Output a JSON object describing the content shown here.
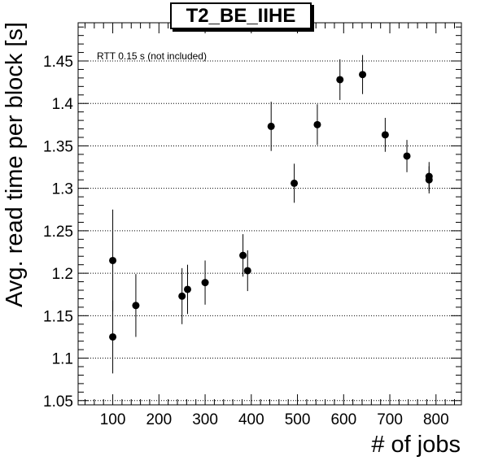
{
  "chart_data": {
    "type": "scatter",
    "title": "T2_BE_IIHE",
    "xlabel": "# of jobs",
    "ylabel": "Avg. read time per block [s]",
    "annotation": "RTT 0.15 s (not included)",
    "xlim": [
      25,
      855
    ],
    "ylim": [
      1.045,
      1.495
    ],
    "x_ticks": [
      100,
      200,
      300,
      400,
      500,
      600,
      700,
      800
    ],
    "y_ticks": [
      1.05,
      1.1,
      1.15,
      1.2,
      1.25,
      1.3,
      1.35,
      1.4,
      1.45
    ],
    "y_tick_labels": [
      "1.05",
      "1.1",
      "1.15",
      "1.2",
      "1.25",
      "1.3",
      "1.35",
      "1.4",
      "1.45"
    ],
    "grid": "horizontal dotted",
    "marker_color": "#000000",
    "points": [
      {
        "x": 100,
        "y": 1.215,
        "err": 0.06
      },
      {
        "x": 100,
        "y": 1.125,
        "err": 0.043
      },
      {
        "x": 150,
        "y": 1.162,
        "err": 0.037
      },
      {
        "x": 250,
        "y": 1.173,
        "err": 0.033
      },
      {
        "x": 262,
        "y": 1.181,
        "err": 0.029
      },
      {
        "x": 300,
        "y": 1.189,
        "err": 0.026
      },
      {
        "x": 382,
        "y": 1.221,
        "err": 0.025
      },
      {
        "x": 392,
        "y": 1.203,
        "err": 0.024
      },
      {
        "x": 443,
        "y": 1.373,
        "err": 0.029
      },
      {
        "x": 493,
        "y": 1.306,
        "err": 0.023
      },
      {
        "x": 543,
        "y": 1.375,
        "err": 0.024
      },
      {
        "x": 592,
        "y": 1.428,
        "err": 0.024
      },
      {
        "x": 641,
        "y": 1.434,
        "err": 0.023
      },
      {
        "x": 690,
        "y": 1.363,
        "err": 0.02
      },
      {
        "x": 737,
        "y": 1.338,
        "err": 0.019
      },
      {
        "x": 785,
        "y": 1.314,
        "err": 0.017
      },
      {
        "x": 785,
        "y": 1.31,
        "err": 0.016
      }
    ]
  }
}
